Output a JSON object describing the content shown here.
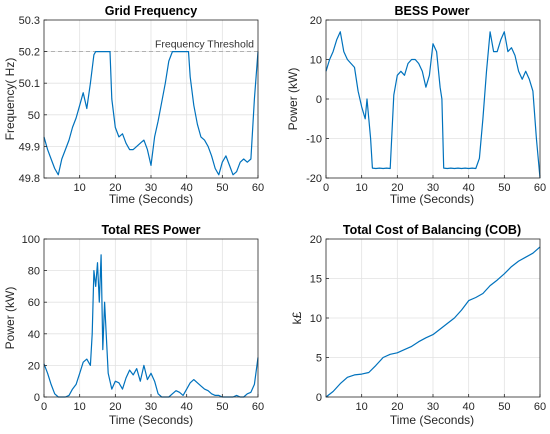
{
  "chart_data": [
    {
      "type": "line",
      "title": "Grid Frequency",
      "xlabel": "Time (Seconds)",
      "ylabel": "Frequency( Hz)",
      "xlim": [
        0,
        60
      ],
      "ylim": [
        49.8,
        50.3
      ],
      "xticks": [
        10,
        20,
        30,
        40,
        50,
        60
      ],
      "yticks": [
        49.8,
        49.9,
        50,
        50.1,
        50.2,
        50.3
      ],
      "ytick_labels": [
        "49.8",
        "49.9",
        "50",
        "50.1",
        "50.2",
        "50.3"
      ],
      "grid": true,
      "annotation": "Frequency Threshold",
      "threshold": 50.2,
      "series": [
        {
          "x": [
            0,
            1,
            2,
            3,
            4,
            5,
            6,
            7,
            8,
            9,
            10,
            11,
            12,
            13,
            14,
            14.5,
            15,
            15.5,
            16,
            17,
            18,
            18.5,
            19,
            20,
            21,
            22,
            23,
            24,
            25,
            26,
            27,
            28,
            29,
            30,
            31,
            32,
            33,
            34,
            35,
            36,
            37,
            38,
            39,
            40,
            40.5,
            41,
            42,
            43,
            44,
            45,
            46,
            47,
            48,
            49,
            50,
            51,
            52,
            53,
            54,
            55,
            56,
            57,
            58,
            59,
            60
          ],
          "y": [
            49.93,
            49.89,
            49.86,
            49.83,
            49.81,
            49.86,
            49.89,
            49.92,
            49.96,
            49.99,
            50.03,
            50.07,
            50.02,
            50.1,
            50.19,
            50.2,
            50.2,
            50.2,
            50.2,
            50.2,
            50.2,
            50.2,
            50.05,
            49.96,
            49.93,
            49.94,
            49.91,
            49.89,
            49.89,
            49.9,
            49.91,
            49.92,
            49.89,
            49.84,
            49.93,
            49.98,
            50.04,
            50.1,
            50.17,
            50.2,
            50.2,
            50.2,
            50.2,
            50.2,
            50.2,
            50.12,
            50.03,
            49.97,
            49.93,
            49.92,
            49.9,
            49.87,
            49.83,
            49.81,
            49.85,
            49.87,
            49.84,
            49.81,
            49.82,
            49.85,
            49.86,
            49.85,
            49.86,
            50.05,
            50.2
          ]
        }
      ]
    },
    {
      "type": "line",
      "title": "BESS Power",
      "xlabel": "Time (Seconds)",
      "ylabel": "Power (kW)",
      "xlim": [
        0,
        60
      ],
      "ylim": [
        -20,
        20
      ],
      "xticks": [
        0,
        10,
        20,
        30,
        40,
        50,
        60
      ],
      "yticks": [
        -20,
        -10,
        0,
        10,
        20
      ],
      "ytick_labels": [
        "-20",
        "-10",
        "0",
        "10",
        "20"
      ],
      "grid": true,
      "series": [
        {
          "x": [
            0,
            1,
            2,
            3,
            4,
            5,
            6,
            7,
            8,
            9,
            10,
            11,
            11.5,
            12,
            12.5,
            13,
            14,
            15,
            16,
            17,
            18,
            19,
            20,
            21,
            22,
            23,
            24,
            25,
            26,
            27,
            28,
            29,
            30,
            31,
            32,
            32.5,
            33,
            34,
            35,
            36,
            37,
            38,
            39,
            40,
            41,
            42,
            43,
            44,
            45,
            46,
            47,
            48,
            49,
            50,
            51,
            52,
            53,
            54,
            55,
            56,
            57,
            58,
            59,
            60
          ],
          "y": [
            7,
            10,
            12,
            15,
            17,
            12,
            10,
            9,
            8,
            2,
            -2,
            -5,
            0,
            -5,
            -10,
            -17.5,
            -17.6,
            -17.5,
            -17.6,
            -17.5,
            -17.6,
            1,
            6,
            7,
            6,
            9,
            10,
            10,
            9,
            7,
            3,
            6,
            14,
            12,
            3,
            0,
            -17.5,
            -17.6,
            -17.5,
            -17.6,
            -17.5,
            -17.6,
            -17.5,
            -17.6,
            -17.5,
            -17.6,
            -15,
            -5,
            7,
            17,
            12,
            12,
            15,
            17,
            12,
            13,
            11,
            7,
            5,
            7,
            5,
            2,
            -10,
            -20
          ]
        }
      ]
    },
    {
      "type": "line",
      "title": "Total RES Power",
      "xlabel": "Time (Seconds)",
      "ylabel": "Power (kW)",
      "xlim": [
        0,
        60
      ],
      "ylim": [
        0,
        100
      ],
      "xticks": [
        0,
        10,
        20,
        30,
        40,
        50,
        60
      ],
      "yticks": [
        0,
        20,
        40,
        60,
        80,
        100
      ],
      "ytick_labels": [
        "0",
        "20",
        "40",
        "60",
        "80",
        "100"
      ],
      "grid": true,
      "series": [
        {
          "x": [
            0,
            1,
            2,
            3,
            4,
            5,
            6,
            7,
            8,
            9,
            10,
            11,
            12,
            13,
            13.5,
            14,
            14.5,
            15,
            15.5,
            16,
            16.5,
            17,
            18,
            19,
            20,
            21,
            22,
            23,
            24,
            25,
            26,
            27,
            28,
            29,
            30,
            31,
            32,
            33,
            34,
            35,
            36,
            37,
            38,
            39,
            40,
            41,
            42,
            43,
            44,
            45,
            46,
            47,
            48,
            49,
            50,
            51,
            52,
            53,
            54,
            55,
            56,
            57,
            58,
            59,
            60
          ],
          "y": [
            21,
            15,
            8,
            2,
            0,
            0,
            0,
            1,
            5,
            8,
            15,
            22,
            24,
            20,
            40,
            80,
            70,
            85,
            60,
            90,
            30,
            60,
            15,
            5,
            10,
            9,
            5,
            12,
            17,
            14,
            18,
            10,
            20,
            11,
            15,
            10,
            2,
            0,
            0,
            0,
            2,
            4,
            3,
            1,
            5,
            9,
            11,
            9,
            7,
            5,
            4,
            2,
            1,
            1,
            0,
            0,
            0,
            0,
            1,
            0,
            0,
            2,
            3,
            8,
            25
          ]
        }
      ]
    },
    {
      "type": "line",
      "title": "Total Cost of Balancing (COB)",
      "xlabel": "Time (Seconds)",
      "ylabel": "k£",
      "xlim": [
        0,
        60
      ],
      "ylim": [
        0,
        20
      ],
      "xticks": [
        10,
        20,
        30,
        40,
        50,
        60
      ],
      "yticks": [
        0,
        5,
        10,
        15,
        20
      ],
      "ytick_labels": [
        "0",
        "5",
        "10",
        "15",
        "20"
      ],
      "grid": true,
      "series": [
        {
          "x": [
            0,
            2,
            4,
            6,
            8,
            10,
            12,
            14,
            16,
            18,
            20,
            22,
            24,
            26,
            28,
            30,
            32,
            34,
            36,
            38,
            40,
            42,
            44,
            46,
            48,
            50,
            52,
            54,
            56,
            58,
            60
          ],
          "y": [
            0,
            0.7,
            1.7,
            2.5,
            2.8,
            2.9,
            3.1,
            4.0,
            5.0,
            5.4,
            5.6,
            6.0,
            6.4,
            7.0,
            7.5,
            7.9,
            8.6,
            9.3,
            10.0,
            11.0,
            12.2,
            12.6,
            13.1,
            14.1,
            14.8,
            15.6,
            16.5,
            17.2,
            17.7,
            18.2,
            19.0
          ]
        }
      ]
    }
  ]
}
